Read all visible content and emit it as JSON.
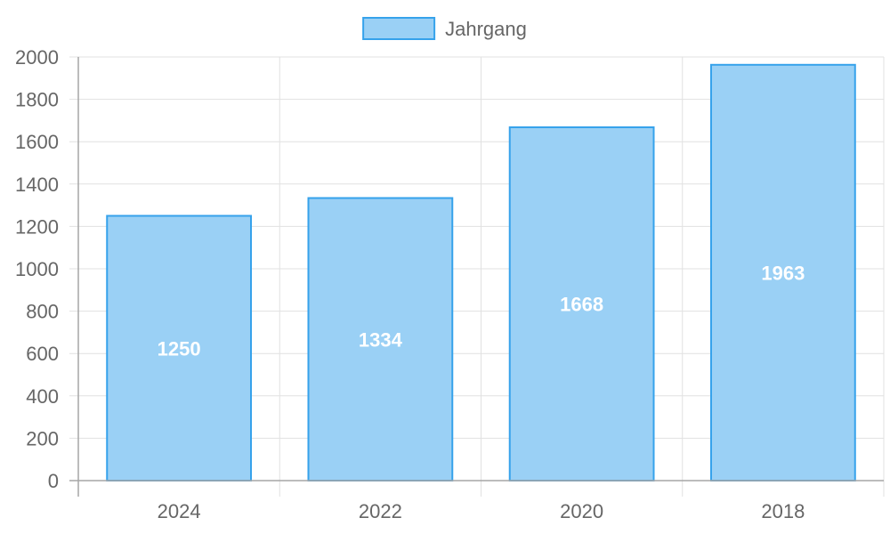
{
  "chart_data": {
    "type": "bar",
    "categories": [
      "2024",
      "2022",
      "2020",
      "2018"
    ],
    "series": [
      {
        "name": "Jahrgang",
        "values": [
          1250,
          1334,
          1668,
          1963
        ]
      }
    ],
    "ylim": [
      0,
      2000
    ],
    "yticks": [
      0,
      200,
      400,
      600,
      800,
      1000,
      1200,
      1400,
      1600,
      1800,
      2000
    ],
    "grid": true,
    "legend_position": "top",
    "colors": {
      "bar_fill": "#9ad0f5",
      "bar_border": "#36a2eb",
      "data_label": "#ffffff"
    },
    "data_labels": true
  }
}
